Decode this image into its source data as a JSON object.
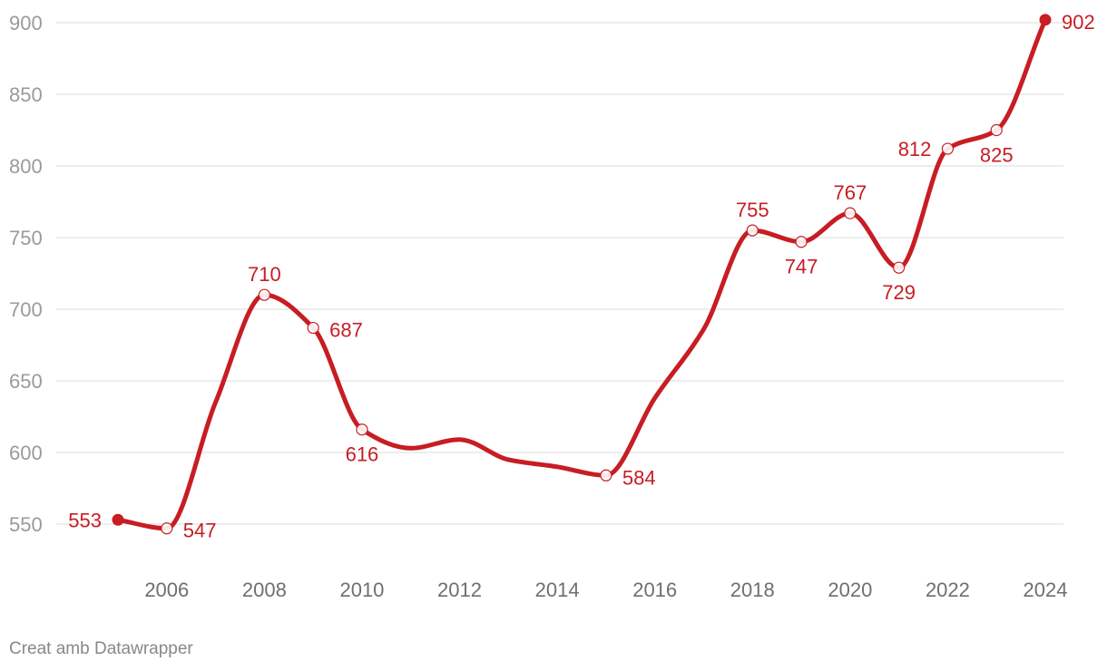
{
  "chart_data": {
    "type": "line",
    "title": "",
    "xlabel": "",
    "ylabel": "",
    "x": [
      2005,
      2006,
      2007,
      2008,
      2009,
      2010,
      2011,
      2012,
      2013,
      2014,
      2015,
      2016,
      2017,
      2018,
      2019,
      2020,
      2021,
      2022,
      2023,
      2024
    ],
    "series": [
      {
        "name": "series-1",
        "values": [
          553,
          547,
          635,
          710,
          687,
          616,
          603,
          609,
          595,
          590,
          584,
          638,
          686,
          755,
          747,
          767,
          729,
          812,
          825,
          902
        ]
      }
    ],
    "labeled_points": [
      {
        "x": 2005,
        "label": "553",
        "side": "left"
      },
      {
        "x": 2006,
        "label": "547",
        "side": "right"
      },
      {
        "x": 2008,
        "label": "710",
        "side": "top"
      },
      {
        "x": 2009,
        "label": "687",
        "side": "right"
      },
      {
        "x": 2010,
        "label": "616",
        "side": "bottom"
      },
      {
        "x": 2015,
        "label": "584",
        "side": "right"
      },
      {
        "x": 2018,
        "label": "755",
        "side": "top"
      },
      {
        "x": 2019,
        "label": "747",
        "side": "bottom"
      },
      {
        "x": 2020,
        "label": "767",
        "side": "top"
      },
      {
        "x": 2021,
        "label": "729",
        "side": "bottom"
      },
      {
        "x": 2022,
        "label": "812",
        "side": "left"
      },
      {
        "x": 2023,
        "label": "825",
        "side": "bottom"
      },
      {
        "x": 2024,
        "label": "902",
        "side": "right"
      }
    ],
    "filled_endpoints": [
      2005,
      2024
    ],
    "yticks": [
      550,
      600,
      650,
      700,
      750,
      800,
      850,
      900
    ],
    "ytick_labels": [
      "550",
      "600",
      "650",
      "700",
      "750",
      "800",
      "850",
      "900"
    ],
    "xticks": [
      2006,
      2008,
      2010,
      2012,
      2014,
      2016,
      2018,
      2020,
      2022,
      2024
    ],
    "xtick_labels": [
      "2006",
      "2008",
      "2010",
      "2012",
      "2014",
      "2016",
      "2018",
      "2020",
      "2022",
      "2024"
    ],
    "xlim": [
      2005,
      2024
    ],
    "ylim": [
      550,
      900
    ],
    "grid": true,
    "legend": "none"
  },
  "colors": {
    "line": "#c71d23",
    "label": "#c71d23",
    "grid": "#e2e2e2"
  },
  "footer": {
    "source": "Creat amb Datawrapper"
  }
}
